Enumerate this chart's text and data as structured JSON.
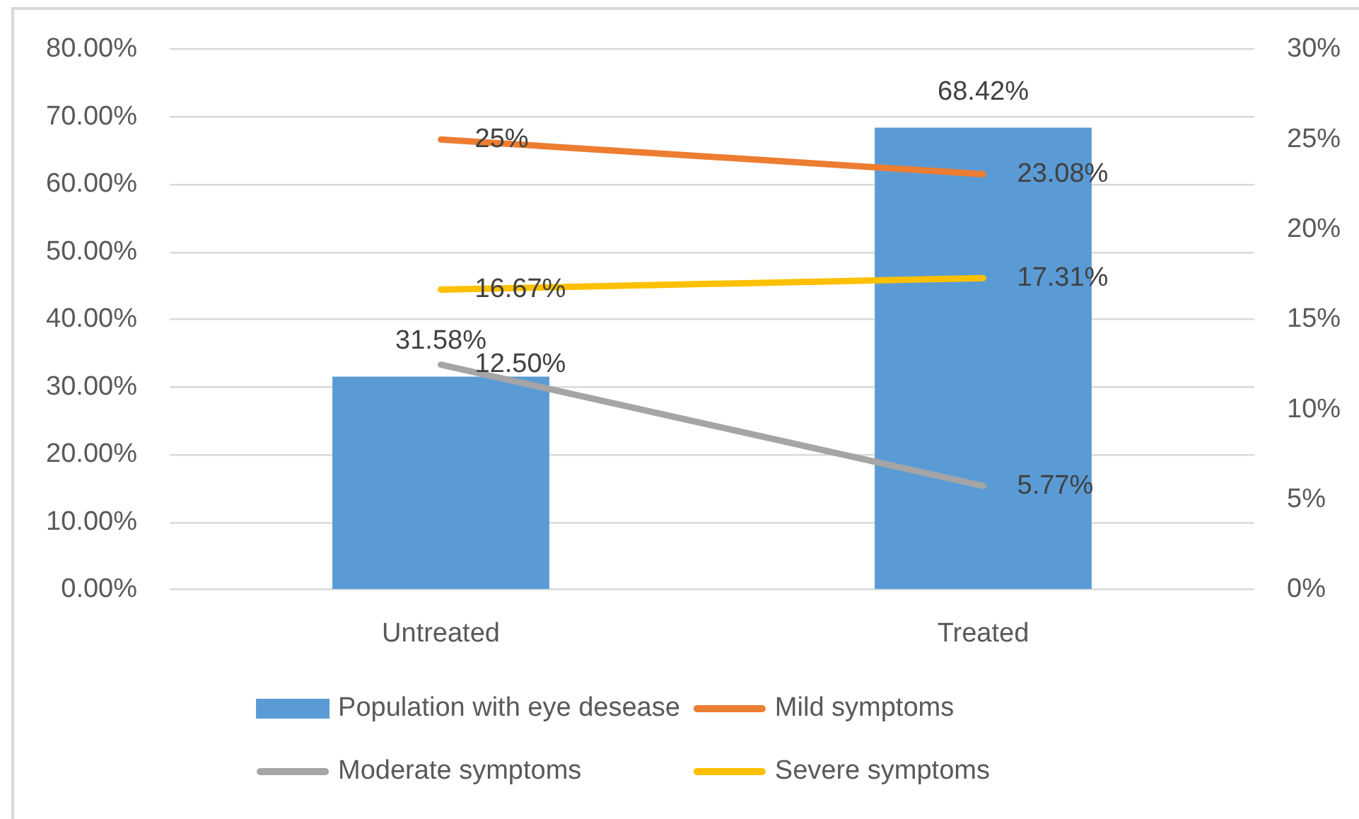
{
  "chart_data": {
    "type": "bar",
    "categories": [
      "Untreated",
      "Treated"
    ],
    "series": [
      {
        "name": "Population with eye desease",
        "color": "#5b9bd5",
        "values": [
          31.58,
          68.42
        ],
        "value_labels": [
          "31.58%",
          "68.42%"
        ]
      },
      {
        "name": "Mild symptoms",
        "type": "line",
        "axis": "y2",
        "color": "#ed7d31",
        "values": [
          25,
          23.08
        ],
        "value_labels": [
          "25%",
          "23.08%"
        ]
      },
      {
        "name": "Moderate symptoms",
        "type": "line",
        "axis": "y2",
        "color": "#a5a5a5",
        "values": [
          12.5,
          5.77
        ],
        "value_labels": [
          "12.50%",
          "5.77%"
        ]
      },
      {
        "name": "Severe symptoms",
        "type": "line",
        "axis": "y2",
        "color": "#ffc000",
        "values": [
          16.67,
          17.31
        ],
        "value_labels": [
          "16.67%",
          "17.31%"
        ]
      }
    ],
    "ylim": [
      0,
      80
    ],
    "yticks": [
      {
        "value": 0,
        "label": "0.00%"
      },
      {
        "value": 10,
        "label": "10.00%"
      },
      {
        "value": 20,
        "label": "20.00%"
      },
      {
        "value": 30,
        "label": "30.00%"
      },
      {
        "value": 40,
        "label": "40.00%"
      },
      {
        "value": 50,
        "label": "50.00%"
      },
      {
        "value": 60,
        "label": "60.00%"
      },
      {
        "value": 70,
        "label": "70.00%"
      },
      {
        "value": 80,
        "label": "80.00%"
      }
    ],
    "y2lim": [
      0,
      30
    ],
    "y2ticks": [
      {
        "value": 0,
        "label": "0%"
      },
      {
        "value": 5,
        "label": "5%"
      },
      {
        "value": 10,
        "label": "10%"
      },
      {
        "value": 15,
        "label": "15%"
      },
      {
        "value": 20,
        "label": "20%"
      },
      {
        "value": 25,
        "label": "25%"
      },
      {
        "value": 30,
        "label": "30%"
      }
    ],
    "grid": "y",
    "legend": "bottom"
  }
}
